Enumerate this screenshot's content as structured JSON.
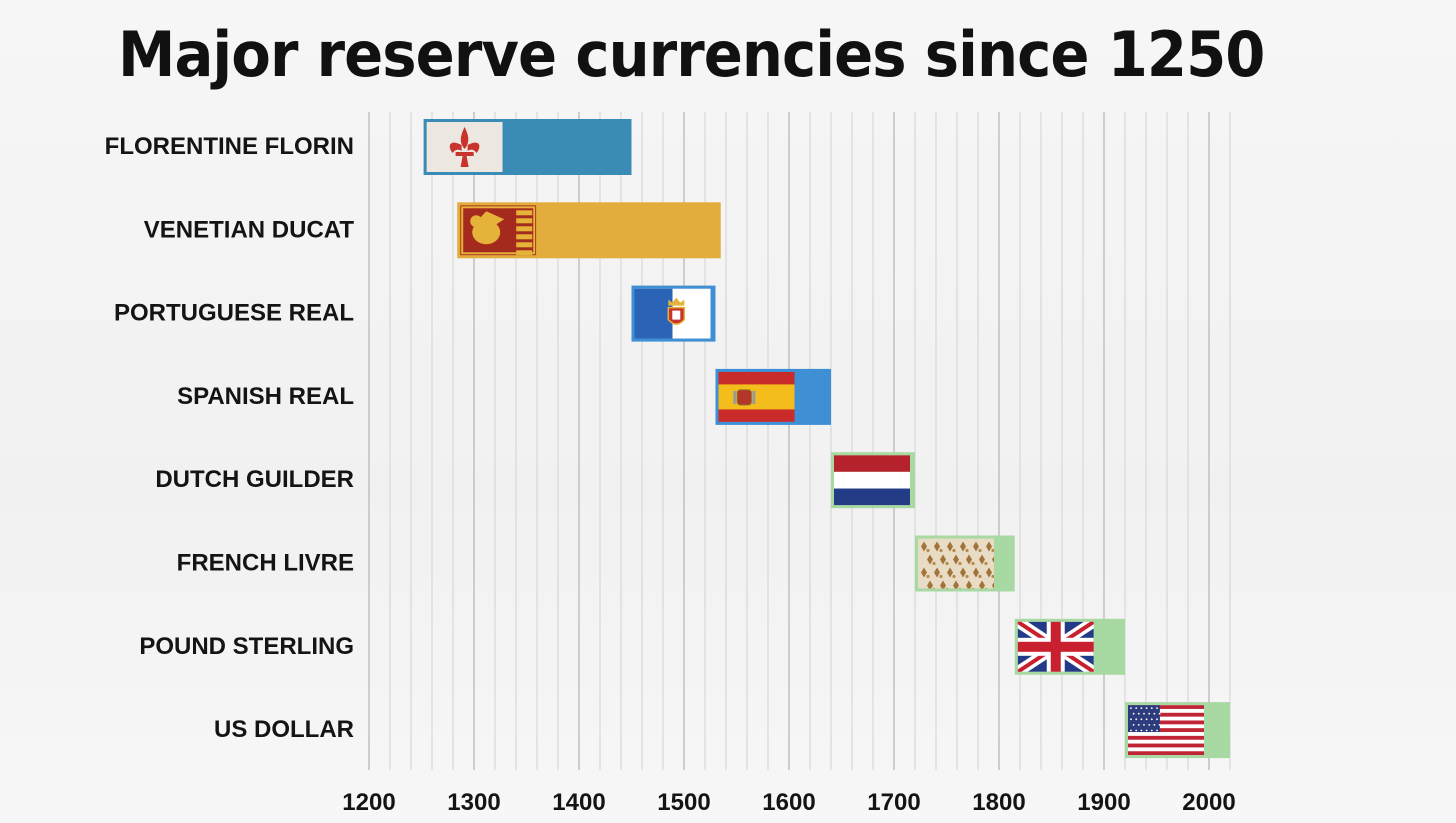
{
  "chart_data": {
    "type": "bar",
    "subtype": "timeline-range",
    "title": "Major reserve currencies since 1250",
    "xlabel": "",
    "ylabel": "",
    "xlim": [
      1200,
      2020
    ],
    "xticks": [
      1200,
      1300,
      1400,
      1500,
      1600,
      1700,
      1800,
      1900,
      2000
    ],
    "minor_grid_step": 20,
    "grid": true,
    "series": [
      {
        "name": "FLORENTINE FLORIN",
        "start": 1252,
        "end": 1450,
        "color": "#3a8cb7",
        "flag": "florence-flag"
      },
      {
        "name": "VENETIAN DUCAT",
        "start": 1284,
        "end": 1535,
        "color": "#e2ad3c",
        "flag": "venice-flag"
      },
      {
        "name": "PORTUGUESE REAL",
        "start": 1450,
        "end": 1530,
        "color": "#3f8fd4",
        "flag": "portugal-flag"
      },
      {
        "name": "SPANISH REAL",
        "start": 1530,
        "end": 1640,
        "color": "#3f8fd4",
        "flag": "spain-flag"
      },
      {
        "name": "DUTCH GUILDER",
        "start": 1640,
        "end": 1720,
        "color": "#a9d9a3",
        "flag": "netherlands-flag"
      },
      {
        "name": "FRENCH LIVRE",
        "start": 1720,
        "end": 1815,
        "color": "#a9d9a3",
        "flag": "france-fleur-flag"
      },
      {
        "name": "POUND STERLING",
        "start": 1815,
        "end": 1920,
        "color": "#a9d9a3",
        "flag": "uk-flag"
      },
      {
        "name": "US DOLLAR",
        "start": 1920,
        "end": 2020,
        "color": "#a9d9a3",
        "flag": "usa-flag"
      }
    ]
  }
}
